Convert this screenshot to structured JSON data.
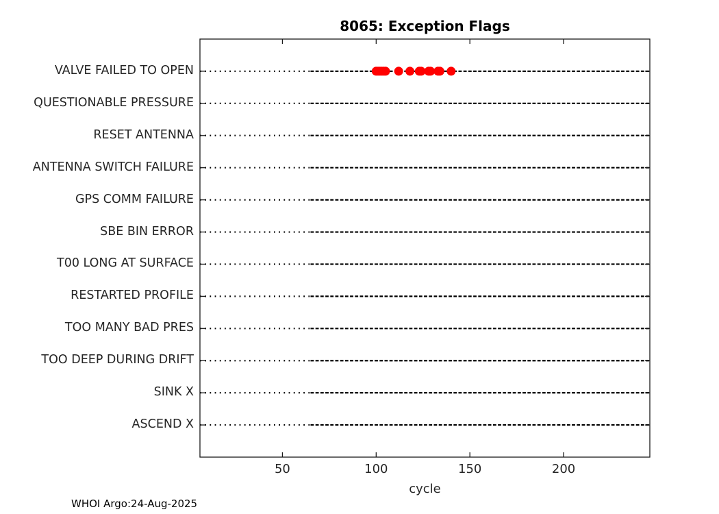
{
  "figure": {
    "footer": "WHOI Argo:24-Aug-2025"
  },
  "chart_data": {
    "type": "scatter",
    "title": "8065: Exception Flags",
    "xlabel": "cycle",
    "ylabel": "",
    "x_ticks": [
      50,
      100,
      150,
      200
    ],
    "xlim": [
      6,
      246
    ],
    "grid": "off",
    "legend": "none",
    "categories": [
      "VALVE FAILED TO OPEN",
      "QUESTIONABLE PRESSURE",
      "RESET ANTENNA",
      "ANTENNA SWITCH FAILURE",
      "GPS COMM FAILURE",
      "SBE BIN ERROR",
      "T00 LONG AT SURFACE",
      "RESTARTED PROFILE",
      "TOO MANY BAD PRES",
      "TOO DEEP DURING DRIFT",
      "SINK X",
      "ASCEND X"
    ],
    "series": [
      {
        "name": "exception-flag-events",
        "category": "VALVE FAILED TO OPEN",
        "marker": "filled-circle",
        "marker_radius_px": 6.5,
        "color": "#ff0000",
        "x": [
          100,
          101,
          102,
          103,
          104,
          105,
          112,
          118,
          123,
          124,
          128,
          129,
          133,
          134,
          140
        ]
      }
    ],
    "row_baseline": {
      "dotted_segment_cycles": [
        6,
        65
      ],
      "dense_segment_cycles": [
        65,
        246
      ],
      "color": "#000000"
    },
    "colors": {
      "axis": "#1a1a1a",
      "text": "#262626",
      "title": "#000000",
      "marker": "#ff0000",
      "background": "#ffffff"
    }
  }
}
